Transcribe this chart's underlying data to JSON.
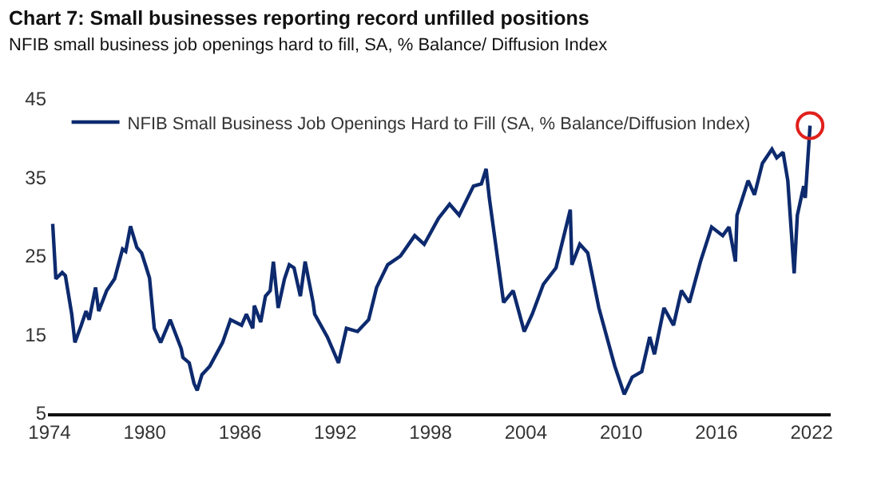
{
  "chart_data": {
    "type": "line",
    "title": "Chart 7: Small businesses reporting record unfilled positions",
    "subtitle": "NFIB small business job openings hard to fill, SA, % Balance/ Diffusion Index",
    "series": [
      {
        "name": "NFIB Small Business Job Openings Hard to Fill (SA, % Balance/Diffusion Index)",
        "color": "#0d2a6e",
        "x": [
          1974.2,
          1974.4,
          1974.8,
          1975.0,
          1975.4,
          1975.6,
          1976.0,
          1976.3,
          1976.5,
          1976.9,
          1977.1,
          1977.6,
          1978.1,
          1978.6,
          1978.8,
          1979.1,
          1979.5,
          1979.8,
          1980.1,
          1980.3,
          1980.6,
          1981.0,
          1981.6,
          1982.3,
          1982.4,
          1982.8,
          1983.1,
          1983.3,
          1983.6,
          1984.1,
          1984.9,
          1985.4,
          1986.1,
          1986.4,
          1986.8,
          1986.9,
          1987.3,
          1987.6,
          1987.9,
          1988.1,
          1988.4,
          1988.8,
          1989.1,
          1989.4,
          1989.8,
          1990.1,
          1990.6,
          1990.7,
          1991.5,
          1992.2,
          1992.7,
          1993.4,
          1994.1,
          1994.6,
          1995.3,
          1996.1,
          1997.0,
          1997.6,
          1998.5,
          1999.2,
          1999.8,
          2000.7,
          2001.2,
          2001.5,
          2001.7,
          2002.1,
          2002.6,
          2003.2,
          2003.9,
          2004.4,
          2005.1,
          2005.9,
          2006.8,
          2006.9,
          2007.4,
          2007.9,
          2008.6,
          2009.6,
          2010.2,
          2010.7,
          2011.3,
          2011.8,
          2012.1,
          2012.7,
          2013.3,
          2013.8,
          2014.3,
          2015.0,
          2015.7,
          2016.4,
          2016.8,
          2017.2,
          2017.3,
          2018.0,
          2018.4,
          2018.9,
          2019.5,
          2019.8,
          2020.2,
          2020.5,
          2020.9,
          2021.1,
          2021.5,
          2021.6,
          2021.9
        ],
        "values": [
          29.1,
          22.1,
          22.9,
          22.5,
          17.6,
          14.0,
          16.2,
          18.0,
          16.9,
          21.0,
          18.0,
          20.6,
          22.1,
          25.9,
          25.6,
          28.8,
          26.1,
          25.4,
          23.5,
          22.2,
          15.8,
          14.0,
          16.9,
          13.2,
          12.1,
          11.4,
          8.8,
          7.9,
          9.9,
          11.0,
          14.0,
          16.9,
          16.2,
          17.6,
          15.8,
          18.7,
          16.6,
          19.9,
          20.6,
          24.3,
          18.4,
          22.1,
          23.9,
          23.5,
          19.9,
          24.3,
          19.1,
          17.6,
          14.7,
          11.4,
          15.8,
          15.4,
          16.9,
          21.0,
          23.9,
          25.0,
          27.6,
          26.5,
          29.8,
          31.6,
          30.2,
          33.9,
          34.2,
          36.1,
          32.4,
          26.5,
          19.1,
          20.6,
          15.4,
          17.6,
          21.4,
          23.5,
          30.9,
          23.9,
          26.5,
          25.4,
          18.4,
          11.0,
          7.4,
          9.6,
          10.3,
          14.7,
          12.5,
          18.4,
          16.2,
          20.6,
          19.1,
          24.3,
          28.7,
          27.6,
          28.7,
          24.3,
          30.2,
          34.6,
          32.8,
          36.8,
          38.6,
          37.5,
          38.2,
          34.6,
          22.8,
          30.2,
          33.9,
          32.4,
          41.6
        ]
      },
      {
        "type": "scatter",
        "marker": "circle",
        "color": "#e0201b",
        "x": [
          2021.9
        ],
        "values": [
          41.6
        ]
      }
    ],
    "xlim": [
      1973.9,
      2023.2
    ],
    "xticks": [
      1974,
      1980,
      1986,
      1992,
      1998,
      2004,
      2010,
      2016,
      2022
    ],
    "ylim": [
      5,
      45
    ],
    "yticks": [
      5,
      15,
      25,
      35,
      45
    ],
    "legend": "top left",
    "marker": "none",
    "line_style": "solid"
  }
}
